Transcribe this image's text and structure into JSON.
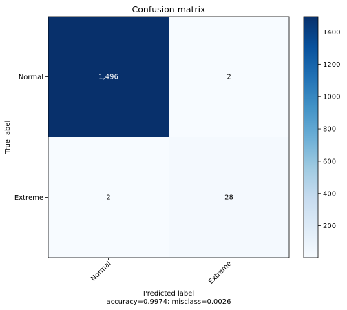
{
  "chart_data": {
    "type": "heatmap",
    "title": "Confusion matrix",
    "xlabel": "Predicted label",
    "ylabel": "True label",
    "subtitle": "accuracy=0.9974; misclass=0.0026",
    "x_categories": [
      "Normal",
      "Extreme"
    ],
    "y_categories": [
      "Normal",
      "Extreme"
    ],
    "values": [
      [
        1496,
        2
      ],
      [
        2,
        28
      ]
    ],
    "cell_labels": [
      [
        "1,496",
        "2"
      ],
      [
        "2",
        "28"
      ]
    ],
    "colormap": "Blues",
    "colorbar": {
      "range": [
        2,
        1496
      ],
      "ticks": [
        200,
        400,
        600,
        800,
        1000,
        1200,
        1400
      ]
    }
  }
}
